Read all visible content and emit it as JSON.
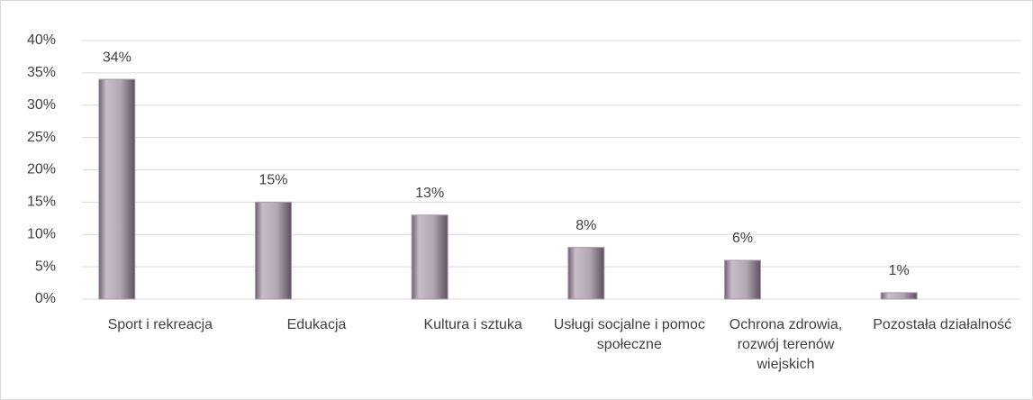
{
  "chart_data": {
    "type": "bar",
    "categories": [
      "Sport i rekreacja",
      "Edukacja",
      "Kultura i sztuka",
      "Usługi socjalne i pomoc społeczne",
      "Ochrona zdrowia, rozwój terenów wiejskich",
      "Pozostała działalność"
    ],
    "values": [
      34,
      15,
      13,
      8,
      6,
      1
    ],
    "value_labels": [
      "34%",
      "15%",
      "13%",
      "8%",
      "6%",
      "1%"
    ],
    "color": "#a99ca9",
    "ylim": [
      0,
      40
    ],
    "yticks": [
      {
        "value": 0,
        "label": "0%"
      },
      {
        "value": 5,
        "label": "5%"
      },
      {
        "value": 10,
        "label": "10%"
      },
      {
        "value": 15,
        "label": "15%"
      },
      {
        "value": 20,
        "label": "20%"
      },
      {
        "value": 25,
        "label": "25%"
      },
      {
        "value": 30,
        "label": "30%"
      },
      {
        "value": 35,
        "label": "35%"
      },
      {
        "value": 40,
        "label": "40%"
      }
    ],
    "grid": true
  }
}
